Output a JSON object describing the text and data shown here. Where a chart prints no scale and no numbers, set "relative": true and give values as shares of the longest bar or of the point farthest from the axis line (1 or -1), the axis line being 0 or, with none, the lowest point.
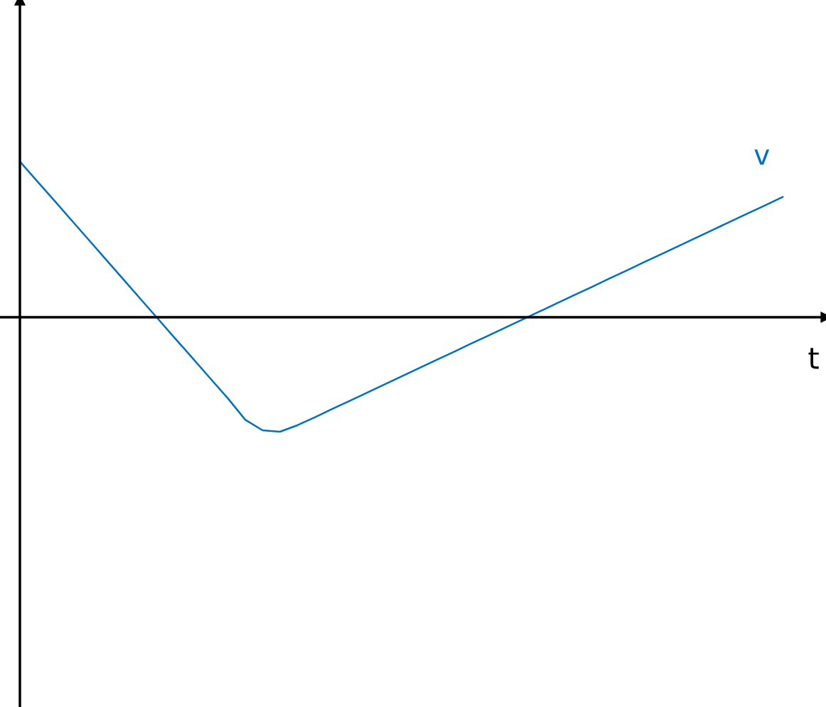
{
  "chart_data": {
    "type": "line",
    "relative": true,
    "xlabel": "t",
    "categories": [
      null,
      null,
      null,
      null,
      null,
      null,
      null,
      null,
      null,
      null,
      null,
      null,
      null,
      null,
      null,
      null,
      null,
      null,
      null,
      null,
      null,
      null,
      null,
      null,
      null,
      null,
      null,
      null,
      null,
      null,
      null,
      null,
      null,
      null,
      null,
      null,
      null,
      null,
      null,
      null,
      null,
      null,
      null,
      null,
      null
    ],
    "series": [
      {
        "name": "v",
        "color": "#0070c0",
        "values": [
          1.0,
          0.873,
          0.747,
          0.62,
          0.493,
          0.366,
          0.239,
          0.112,
          -0.015,
          -0.142,
          -0.268,
          -0.395,
          -0.521,
          -0.658,
          -0.726,
          -0.735,
          -0.694,
          -0.643,
          -0.59,
          -0.538,
          -0.486,
          -0.433,
          -0.381,
          -0.328,
          -0.276,
          -0.224,
          -0.171,
          -0.119,
          -0.067,
          -0.014,
          0.038,
          0.091,
          0.143,
          0.195,
          0.248,
          0.3,
          0.353,
          0.405,
          0.457,
          0.51,
          0.562,
          0.615,
          0.667,
          0.719,
          0.772
        ]
      }
    ]
  }
}
